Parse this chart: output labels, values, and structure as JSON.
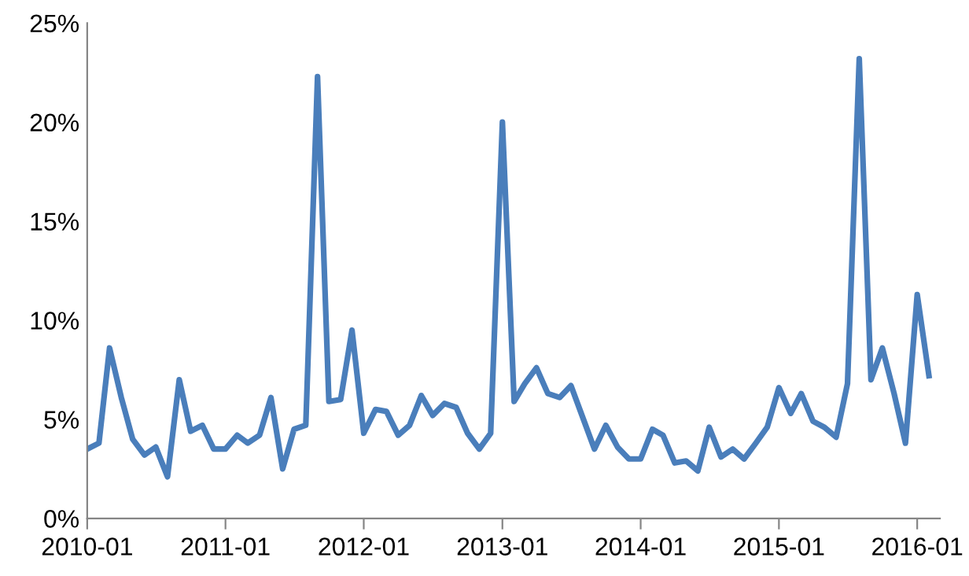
{
  "chart_data": {
    "type": "line",
    "x": [
      "2010-01",
      "2010-02",
      "2010-03",
      "2010-04",
      "2010-05",
      "2010-06",
      "2010-07",
      "2010-08",
      "2010-09",
      "2010-10",
      "2010-11",
      "2010-12",
      "2011-01",
      "2011-02",
      "2011-03",
      "2011-04",
      "2011-05",
      "2011-06",
      "2011-07",
      "2011-08",
      "2011-09",
      "2011-10",
      "2011-11",
      "2011-12",
      "2012-01",
      "2012-02",
      "2012-03",
      "2012-04",
      "2012-05",
      "2012-06",
      "2012-07",
      "2012-08",
      "2012-09",
      "2012-10",
      "2012-11",
      "2012-12",
      "2013-01",
      "2013-02",
      "2013-03",
      "2013-04",
      "2013-05",
      "2013-06",
      "2013-07",
      "2013-08",
      "2013-09",
      "2013-10",
      "2013-11",
      "2013-12",
      "2014-01",
      "2014-02",
      "2014-03",
      "2014-04",
      "2014-05",
      "2014-06",
      "2014-07",
      "2014-08",
      "2014-09",
      "2014-10",
      "2014-11",
      "2014-12",
      "2015-01",
      "2015-02",
      "2015-03",
      "2015-04",
      "2015-05",
      "2015-06",
      "2015-07",
      "2015-08",
      "2015-09",
      "2015-10",
      "2015-11",
      "2015-12",
      "2016-01",
      "2016-02"
    ],
    "series": [
      {
        "color": "#4a7ebb",
        "values": [
          3.5,
          3.8,
          8.6,
          6.1,
          4.0,
          3.2,
          3.6,
          2.1,
          7.0,
          4.4,
          4.7,
          3.5,
          3.5,
          4.2,
          3.8,
          4.2,
          6.1,
          2.5,
          4.5,
          4.7,
          22.3,
          5.9,
          6.0,
          9.5,
          4.3,
          5.5,
          5.4,
          4.2,
          4.7,
          6.2,
          5.2,
          5.8,
          5.6,
          4.3,
          3.5,
          4.3,
          20.0,
          5.9,
          6.8,
          7.6,
          6.3,
          6.1,
          6.7,
          5.1,
          3.5,
          4.7,
          3.6,
          3.0,
          3.0,
          4.5,
          4.2,
          2.8,
          2.9,
          2.4,
          4.6,
          3.1,
          3.5,
          3.0,
          3.8,
          4.6,
          6.6,
          5.3,
          6.3,
          4.9,
          4.6,
          4.1,
          6.8,
          23.2,
          7.0,
          8.6,
          6.3,
          3.8,
          11.3,
          7.2
        ]
      }
    ],
    "xlim": [
      "2010-01",
      "2016-03"
    ],
    "xticks": [
      "2010-01",
      "2011-01",
      "2012-01",
      "2013-01",
      "2014-01",
      "2015-01",
      "2016-01"
    ],
    "ylim": [
      0,
      25
    ],
    "yticks": [
      {
        "value": 0,
        "label": "0%"
      },
      {
        "value": 5,
        "label": "5%"
      },
      {
        "value": 10,
        "label": "10%"
      },
      {
        "value": 15,
        "label": "15%"
      },
      {
        "value": 20,
        "label": "20%"
      },
      {
        "value": 25,
        "label": "25%"
      }
    ],
    "grid": false,
    "marker": "none",
    "line_style": "solid"
  }
}
